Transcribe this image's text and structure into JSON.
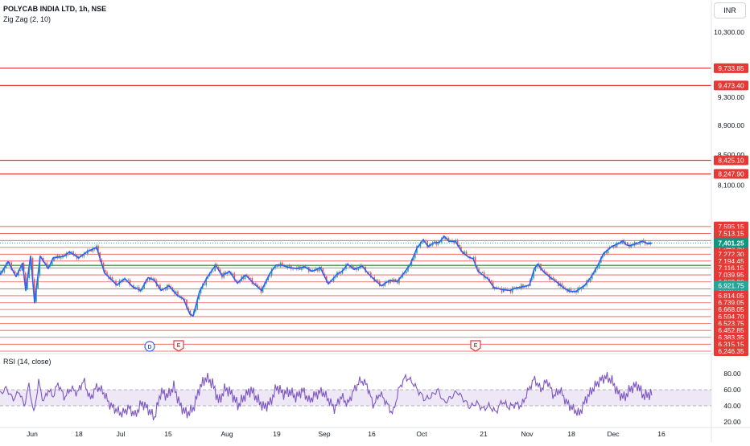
{
  "header": {
    "symbol": "POLYCAB INDIA LTD, 1h, NSE",
    "indicator": "Zig Zag (2, 10)",
    "currency": "INR"
  },
  "rsi_panel": {
    "title": "RSI (14, close)"
  },
  "colors": {
    "candle_up": "#26a69a",
    "candle_down": "#ef5350",
    "zigzag": "#2962ff",
    "level_line": "#e53935",
    "green_level": "#2e7d32",
    "rsi_line": "#7e57c2",
    "rsi_band": "#ede7f6",
    "last_price": "#089981"
  },
  "chart_data": [
    {
      "type": "line",
      "title": "POLYCAB INDIA LTD, 1h, NSE",
      "xlabel": "",
      "ylabel": "",
      "x_tick_labels": [
        "Jun",
        "18",
        "Jul",
        "15",
        "Aug",
        "19",
        "Sep",
        "16",
        "Oct",
        "21",
        "Nov",
        "18",
        "Dec",
        "16"
      ],
      "y_tick_labels": [
        10300,
        9700,
        9300,
        8900,
        8500,
        8100
      ],
      "ylim": [
        6240,
        10600
      ],
      "scale": "log",
      "grid": false,
      "price_levels": [
        9733.85,
        9473.4,
        8425.1,
        8247.9,
        7595.15,
        7513.15,
        7429.3,
        7349.9,
        7272.3,
        7194.45,
        7116.15,
        7039.95,
        6963.2,
        6887.7,
        6814.05,
        6739.05,
        6668.05,
        6594.7,
        6523.75,
        6452.85,
        6383.35,
        6315.15,
        6246.35
      ],
      "green_level": 7146,
      "last_price": 7401.25,
      "highlight_price": 6921.75,
      "zigzag_x": [
        0,
        10,
        20,
        28,
        32,
        38,
        43,
        50,
        60,
        66,
        80,
        86,
        98,
        108,
        120,
        130,
        136,
        145,
        155,
        165,
        175,
        184,
        192,
        200,
        210,
        220,
        228,
        236,
        240,
        248,
        258,
        268,
        276,
        285,
        295,
        305,
        315,
        325,
        335,
        343,
        350,
        360,
        370,
        378,
        388,
        398,
        408,
        418,
        425,
        432,
        440,
        450,
        458,
        465,
        474,
        484,
        494,
        502,
        510,
        518,
        526,
        532,
        538,
        546,
        552,
        558,
        566,
        574,
        582,
        588,
        594,
        600,
        606,
        614,
        624,
        634,
        642,
        650,
        658,
        664,
        668,
        676,
        684,
        692,
        700,
        708,
        716,
        722,
        726,
        734,
        742,
        750,
        760,
        770,
        774,
        778,
        782,
        790,
        798,
        806,
        810
      ],
      "zigzag_y": [
        7040,
        7190,
        7020,
        7170,
        6870,
        7250,
        6740,
        7250,
        7110,
        7230,
        7250,
        7300,
        7230,
        7300,
        7350,
        7060,
        7010,
        6930,
        7000,
        6910,
        6870,
        7010,
        6980,
        6870,
        6920,
        6820,
        6780,
        6620,
        6600,
        6860,
        7020,
        7150,
        7030,
        7080,
        6950,
        7040,
        6950,
        6870,
        7050,
        7150,
        7150,
        7120,
        7110,
        7130,
        7080,
        7120,
        6940,
        7040,
        7080,
        7160,
        7100,
        7140,
        7050,
        6990,
        6920,
        6980,
        6970,
        7060,
        7160,
        7340,
        7440,
        7360,
        7400,
        7410,
        7480,
        7420,
        7420,
        7300,
        7240,
        7220,
        7080,
        7040,
        7000,
        6900,
        6880,
        6870,
        6900,
        6910,
        6930,
        7110,
        7160,
        7070,
        7010,
        6960,
        6900,
        6860,
        6860,
        6900,
        6920,
        7010,
        7130,
        7280,
        7360,
        7400,
        7430,
        7380,
        7370,
        7390,
        7420,
        7390,
        7400
      ]
    },
    {
      "type": "line",
      "title": "RSI (14, close)",
      "y_tick_labels": [
        80,
        60,
        40,
        20
      ],
      "ylim": [
        15,
        90
      ],
      "bands": [
        40,
        60
      ],
      "rsi_x": [
        0,
        8,
        16,
        24,
        30,
        36,
        42,
        48,
        54,
        60,
        66,
        72,
        80,
        88,
        96,
        104,
        112,
        120,
        128,
        136,
        144,
        152,
        160,
        168,
        176,
        184,
        192,
        200,
        208,
        216,
        224,
        232,
        240,
        248,
        256,
        264,
        272,
        280,
        288,
        296,
        304,
        312,
        320,
        328,
        336,
        344,
        352,
        360,
        368,
        376,
        384,
        392,
        400,
        408,
        416,
        424,
        432,
        440,
        448,
        456,
        464,
        472,
        480,
        488,
        496,
        504,
        512,
        520,
        528,
        536,
        544,
        552,
        560,
        568,
        576,
        584,
        592,
        600,
        608,
        616,
        624,
        632,
        640,
        648,
        656,
        664,
        672,
        680,
        688,
        696,
        704,
        712,
        720,
        728,
        736,
        744,
        752,
        760,
        768,
        776,
        784,
        792,
        800,
        808
      ],
      "rsi_values": [
        55,
        62,
        48,
        58,
        40,
        66,
        30,
        70,
        45,
        60,
        52,
        68,
        50,
        62,
        56,
        72,
        48,
        64,
        58,
        42,
        35,
        30,
        38,
        28,
        44,
        36,
        25,
        58,
        52,
        64,
        40,
        30,
        36,
        62,
        75,
        68,
        45,
        62,
        55,
        40,
        52,
        60,
        48,
        38,
        44,
        64,
        55,
        58,
        50,
        60,
        46,
        54,
        58,
        48,
        36,
        52,
        42,
        60,
        72,
        66,
        40,
        56,
        44,
        30,
        62,
        76,
        70,
        58,
        48,
        52,
        60,
        44,
        50,
        58,
        48,
        38,
        44,
        36,
        40,
        32,
        46,
        38,
        42,
        40,
        58,
        74,
        60,
        72,
        52,
        60,
        44,
        36,
        30,
        48,
        60,
        70,
        76,
        72,
        56,
        50,
        62,
        66,
        52,
        55
      ]
    }
  ]
}
